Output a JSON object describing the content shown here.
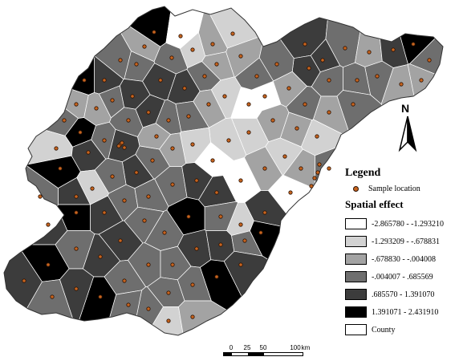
{
  "legend": {
    "title": "Legend",
    "sample_label": "Sample location",
    "spatial_title": "Spatial effect",
    "classes": [
      {
        "label": "-2.865780 - -1.293210",
        "color": "#ffffff"
      },
      {
        "label": "-1.293209 - -.678831",
        "color": "#d2d2d2"
      },
      {
        "label": "-.678830 - -.004008",
        "color": "#a3a3a3"
      },
      {
        "label": "-.004007 - .685569",
        "color": "#6e6e6e"
      },
      {
        "label": ".685570 - 1.391070",
        "color": "#3c3c3c"
      },
      {
        "label": "1.391071 - 2.431910",
        "color": "#000000"
      },
      {
        "label": "County",
        "color": "#ffffff"
      }
    ]
  },
  "scale": {
    "ticks": [
      "0",
      "25",
      "50",
      "100"
    ],
    "unit": "km"
  },
  "north": {
    "label": "N"
  },
  "colors": {
    "sample_fill": "#c8641e",
    "sample_stroke": "#2a1205",
    "cell_border": "#ffffff"
  }
}
